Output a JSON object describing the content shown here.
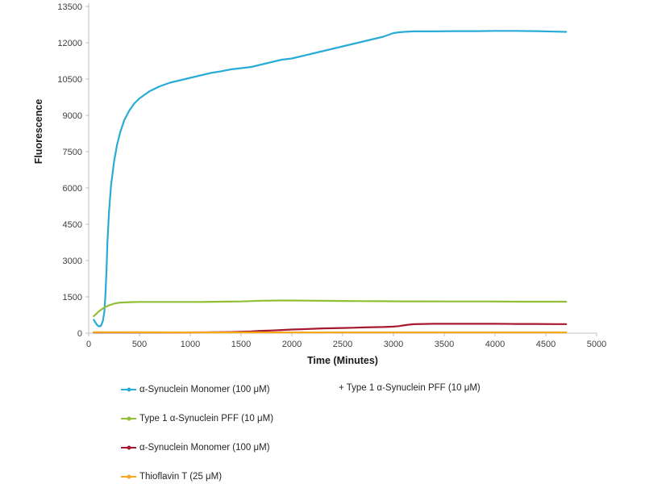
{
  "colors": {
    "axis": "#BFBFBF",
    "tick_text": "#404040",
    "label_text": "#1a1a1a",
    "background": "#ffffff"
  },
  "chart_data": {
    "type": "line",
    "title": "",
    "xlabel": "Time (Minutes)",
    "ylabel": "Fluorescence",
    "xlim": [
      0,
      5000
    ],
    "ylim": [
      0,
      13500
    ],
    "xticks": [
      0,
      500,
      1000,
      1500,
      2000,
      2500,
      3000,
      3500,
      4000,
      4500,
      5000
    ],
    "yticks": [
      0,
      1500,
      3000,
      4500,
      6000,
      7500,
      9000,
      10500,
      12000,
      13500
    ],
    "grid": false,
    "legend_position": "bottom-left",
    "series": [
      {
        "name": "α-Synuclein Monomer (100 μM)",
        "name_cont": "+ Type 1 α-Synuclein PFF (10 μM)",
        "color": "#29ABD6",
        "x": [
          50,
          80,
          100,
          120,
          140,
          155,
          165,
          175,
          185,
          200,
          220,
          250,
          280,
          310,
          350,
          400,
          450,
          500,
          600,
          700,
          800,
          900,
          1000,
          1100,
          1200,
          1300,
          1400,
          1500,
          1600,
          1700,
          1800,
          1900,
          2000,
          2100,
          2200,
          2300,
          2400,
          2500,
          2600,
          2700,
          2800,
          2900,
          3000,
          3050,
          3100,
          3200,
          3300,
          3400,
          3600,
          3800,
          4000,
          4200,
          4400,
          4600,
          4700
        ],
        "y": [
          550,
          350,
          280,
          300,
          500,
          900,
          1600,
          2600,
          3800,
          5000,
          6100,
          7100,
          7800,
          8300,
          8800,
          9200,
          9500,
          9700,
          10000,
          10200,
          10350,
          10450,
          10550,
          10650,
          10750,
          10820,
          10900,
          10950,
          11000,
          11100,
          11200,
          11300,
          11350,
          11450,
          11550,
          11650,
          11750,
          11850,
          11950,
          12050,
          12150,
          12250,
          12400,
          12430,
          12450,
          12470,
          12470,
          12470,
          12480,
          12480,
          12490,
          12490,
          12480,
          12460,
          12450
        ]
      },
      {
        "name": "Type 1 α-Synuclein PFF (10 μM)",
        "color": "#92BE33",
        "x": [
          50,
          100,
          150,
          200,
          250,
          300,
          400,
          500,
          700,
          900,
          1100,
          1300,
          1500,
          1700,
          1900,
          2100,
          2300,
          2500,
          2700,
          2900,
          3100,
          3300,
          3500,
          3700,
          3900,
          4100,
          4300,
          4500,
          4700
        ],
        "y": [
          700,
          900,
          1050,
          1150,
          1220,
          1260,
          1280,
          1290,
          1290,
          1290,
          1290,
          1300,
          1310,
          1340,
          1350,
          1345,
          1335,
          1330,
          1325,
          1320,
          1315,
          1315,
          1310,
          1310,
          1310,
          1305,
          1300,
          1300,
          1300
        ]
      },
      {
        "name": "α-Synuclein Monomer (100 μM)",
        "color": "#A6192E",
        "x": [
          50,
          300,
          600,
          900,
          1200,
          1400,
          1500,
          1600,
          1700,
          1800,
          1900,
          2000,
          2100,
          2200,
          2300,
          2400,
          2500,
          2600,
          2700,
          2800,
          2900,
          3000,
          3050,
          3100,
          3150,
          3200,
          3300,
          3400,
          3600,
          3800,
          4000,
          4200,
          4400,
          4600,
          4700
        ],
        "y": [
          30,
          30,
          30,
          30,
          35,
          45,
          60,
          75,
          95,
          110,
          130,
          150,
          165,
          180,
          195,
          205,
          215,
          225,
          235,
          245,
          255,
          270,
          290,
          320,
          350,
          370,
          380,
          385,
          385,
          385,
          385,
          380,
          380,
          375,
          375
        ]
      },
      {
        "name": "Thioflavin T (25 μM)",
        "color": "#F5A81C",
        "x": [
          50,
          500,
          1000,
          1500,
          2000,
          2500,
          3000,
          3500,
          4000,
          4500,
          4700
        ],
        "y": [
          40,
          35,
          30,
          30,
          30,
          30,
          30,
          30,
          30,
          30,
          30
        ]
      }
    ]
  }
}
